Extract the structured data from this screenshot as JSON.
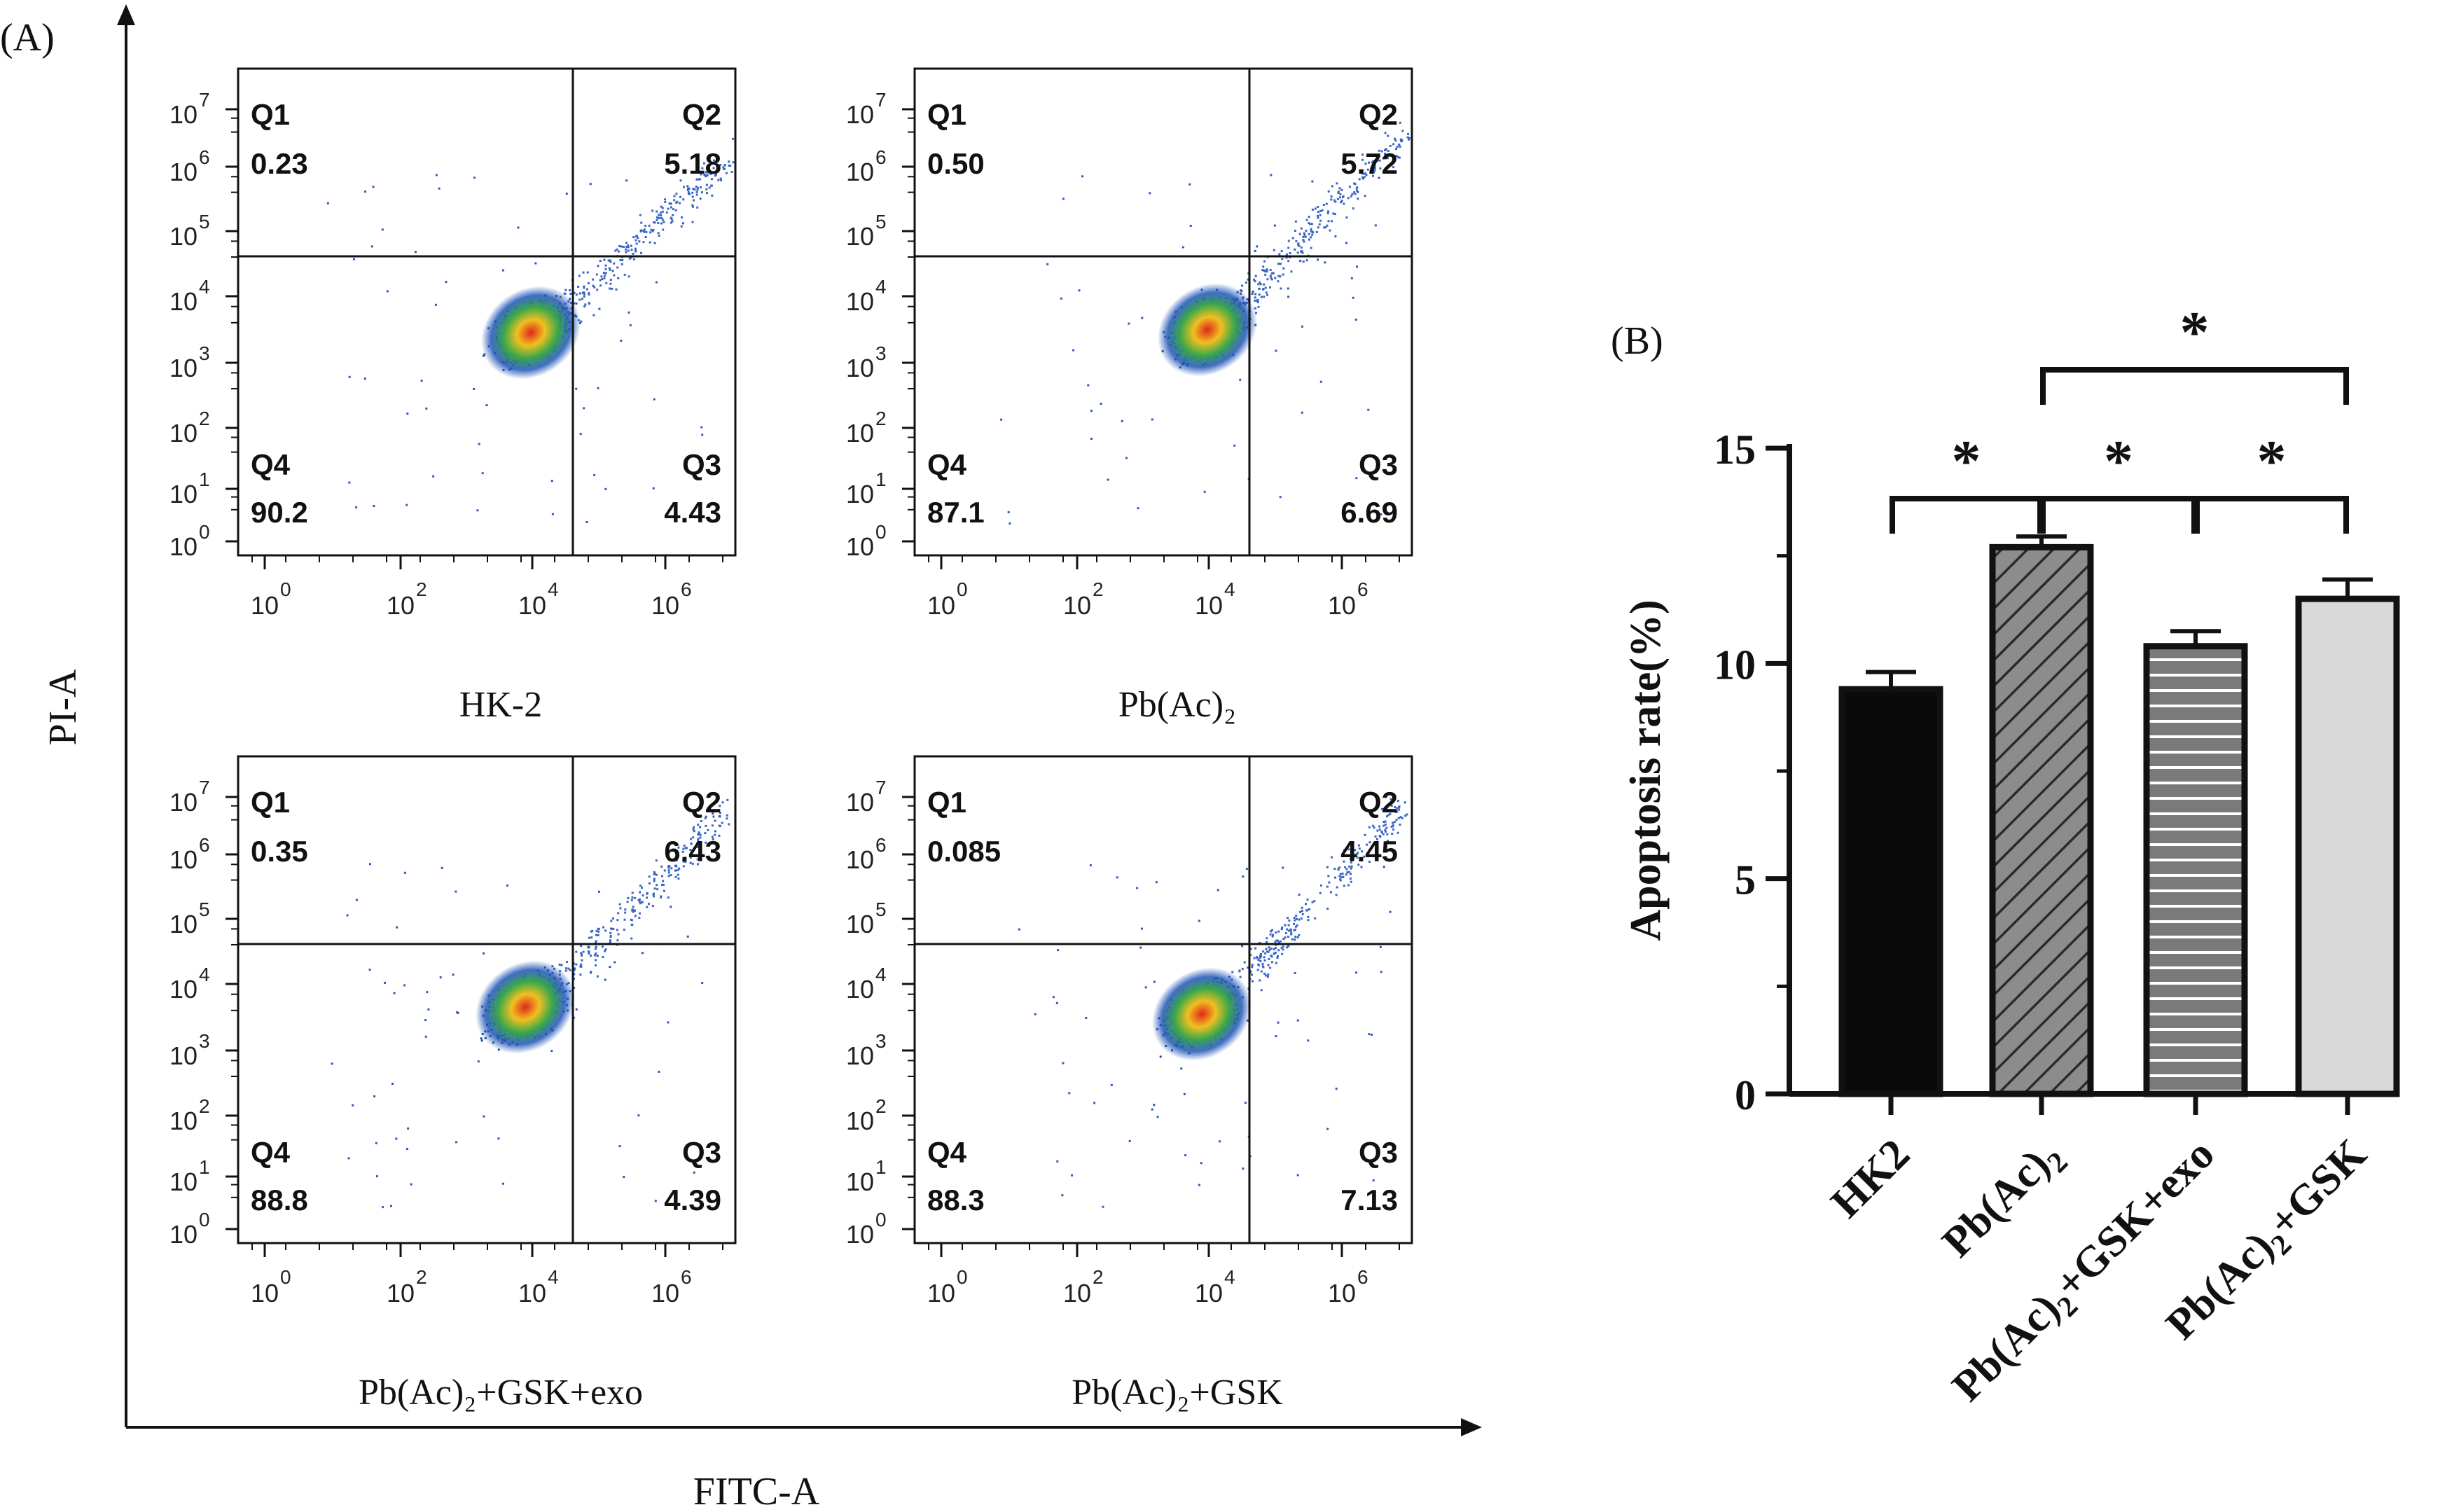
{
  "panel_a": {
    "label": "(A)",
    "x_axis_label": "FITC-A",
    "y_axis_label": "PI-A",
    "tick_exponents": [
      0,
      2,
      4,
      6
    ],
    "y_tick_exponents": [
      0,
      1,
      2,
      3,
      4,
      5,
      6,
      7
    ],
    "plots": [
      {
        "title": "HK-2",
        "q1_label": "Q1",
        "q1": "0.23",
        "q2_label": "Q2",
        "q2": "5.18",
        "q3_label": "Q3",
        "q3": "4.43",
        "q4_label": "Q4",
        "q4": "90.2"
      },
      {
        "title": "Pb(Ac)₂",
        "q1_label": "Q1",
        "q1": "0.50",
        "q2_label": "Q2",
        "q2": "5.72",
        "q3_label": "Q3",
        "q3": "6.69",
        "q4_label": "Q4",
        "q4": "87.1"
      },
      {
        "title": "Pb(Ac)₂+GSK+exo",
        "q1_label": "Q1",
        "q1": "0.35",
        "q2_label": "Q2",
        "q2": "6.43",
        "q3_label": "Q3",
        "q3": "4.39",
        "q4_label": "Q4",
        "q4": "88.8"
      },
      {
        "title": "Pb(Ac)₂+GSK",
        "q1_label": "Q1",
        "q1": "0.085",
        "q2_label": "Q2",
        "q2": "4.45",
        "q3_label": "Q3",
        "q3": "7.13",
        "q4_label": "Q4",
        "q4": "88.3"
      }
    ]
  },
  "chart_data": {
    "type": "bar",
    "panel_label": "(B)",
    "title": "",
    "xlabel": "",
    "ylabel": "Apoptosis rate(%)",
    "ylim": [
      0,
      15
    ],
    "yticks": [
      0,
      5,
      10,
      15
    ],
    "categories": [
      {
        "base": "HK2",
        "sub": "",
        "tail": ""
      },
      {
        "base": "Pb(Ac)",
        "sub": "2",
        "tail": ""
      },
      {
        "base": "Pb(Ac)",
        "sub": "2",
        "tail": "+GSK+exo"
      },
      {
        "base": "Pb(Ac)",
        "sub": "2",
        "tail": "+GSK"
      }
    ],
    "values": [
      9.4,
      12.7,
      10.4,
      11.5
    ],
    "errors": [
      0.4,
      0.25,
      0.35,
      0.45
    ],
    "fills": [
      {
        "color": "#0a0a0a",
        "pattern": "solid"
      },
      {
        "color": "#8c8c8c",
        "pattern": "diagonal"
      },
      {
        "color": "#7a7a7a",
        "pattern": "horizontal"
      },
      {
        "color": "#d9d9d9",
        "pattern": "solid"
      }
    ],
    "significance": [
      {
        "from": 0,
        "to": 1,
        "label": "*"
      },
      {
        "from": 1,
        "to": 2,
        "label": "*"
      },
      {
        "from": 2,
        "to": 3,
        "label": "*"
      },
      {
        "from": 1,
        "to": 3,
        "label": "*"
      }
    ]
  }
}
